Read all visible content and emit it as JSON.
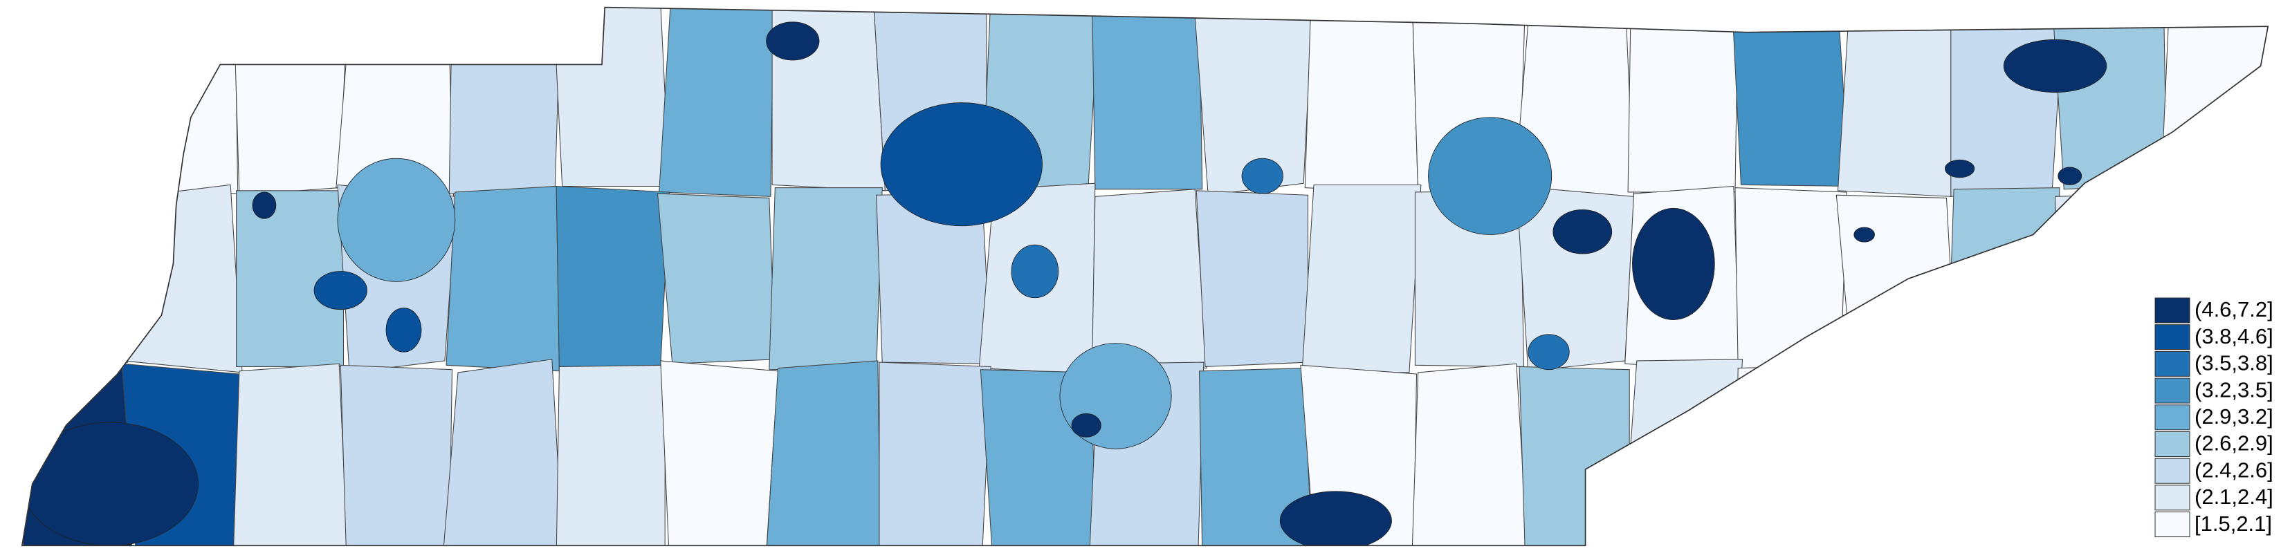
{
  "legend": {
    "items": [
      {
        "label": "(4.6,7.2]",
        "color": "#08306b"
      },
      {
        "label": "(3.8,4.6]",
        "color": "#08519c"
      },
      {
        "label": "(3.5,3.8]",
        "color": "#2171b5"
      },
      {
        "label": "(3.2,3.5]",
        "color": "#4292c6"
      },
      {
        "label": "(2.9,3.2]",
        "color": "#6baed6"
      },
      {
        "label": "(2.6,2.9]",
        "color": "#9ecae1"
      },
      {
        "label": "(2.4,2.6]",
        "color": "#c6dbef"
      },
      {
        "label": "(2.1,2.4]",
        "color": "#deebf7"
      },
      {
        "label": "[1.5,2.1]",
        "color": "#f7fbff"
      }
    ]
  }
}
